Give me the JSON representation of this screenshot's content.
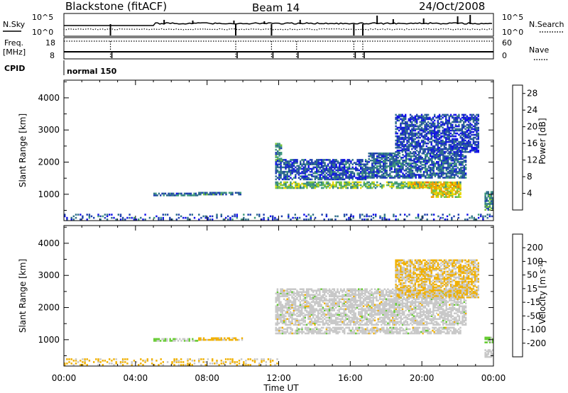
{
  "header": {
    "radar": "Blackstone (fitACF)",
    "beam": "Beam 14",
    "date": "24/Oct/2008"
  },
  "panels": {
    "sky_label": "N.Sky",
    "search_label": "N.Search",
    "sky_ticks": [
      "10^5",
      "10^0"
    ],
    "freq_label": "Freq.",
    "freq_unit": "[MHz]",
    "freq_ticks": [
      "18",
      "8"
    ],
    "nave_ticks": [
      "60",
      "0"
    ],
    "nave_label": "Nave",
    "cpid_label": "CPID",
    "cpid_value": "normal 150"
  },
  "colors": {
    "power_scale": [
      "#1010e8",
      "#1e3fae",
      "#2f6f8a",
      "#3f9a7a",
      "#7ac43a",
      "#e8d800",
      "#f0a000",
      "#f07000",
      "#e01010"
    ],
    "velocity_scale": [
      "#1010e8",
      "#2a56b0",
      "#3f8a7a",
      "#66cc33",
      "#c8c8c8",
      "#f0b000",
      "#f08000",
      "#ee5500",
      "#e01010"
    ]
  },
  "chart_data": [
    {
      "type": "heatmap",
      "title": "Power",
      "ylabel": "Slant Range [km]",
      "xlabel": "Time UT",
      "xticks": [
        "00:00",
        "04:00",
        "08:00",
        "12:00",
        "16:00",
        "20:00",
        "00:00"
      ],
      "yticks": [
        1000,
        2000,
        3000,
        4000
      ],
      "ylim": [
        180,
        4550
      ],
      "xlim_hours": [
        0,
        24
      ],
      "colorbar": {
        "label": "Power [dB]",
        "ticks": [
          4,
          8,
          12,
          16,
          20,
          24,
          28
        ],
        "range": [
          0,
          30
        ]
      },
      "regions": [
        {
          "t": [
            0.0,
            24.0
          ],
          "r": [
            200,
            400
          ],
          "value": 6,
          "coverage": "sparse"
        },
        {
          "t": [
            5.0,
            7.5
          ],
          "r": [
            950,
            1060
          ],
          "value": 8
        },
        {
          "t": [
            7.5,
            10.0
          ],
          "r": [
            980,
            1080
          ],
          "value": 9
        },
        {
          "t": [
            11.8,
            22.2
          ],
          "r": [
            1180,
            1400
          ],
          "value": 14
        },
        {
          "t": [
            11.8,
            17.0
          ],
          "r": [
            1450,
            2100
          ],
          "value": 6
        },
        {
          "t": [
            17.0,
            22.5
          ],
          "r": [
            1500,
            2300
          ],
          "value": 7
        },
        {
          "t": [
            19.2,
            22.2
          ],
          "r": [
            1200,
            1400
          ],
          "value": 20
        },
        {
          "t": [
            20.5,
            22.2
          ],
          "r": [
            900,
            1200
          ],
          "value": 18
        },
        {
          "t": [
            11.8,
            12.2
          ],
          "r": [
            2000,
            2600
          ],
          "value": 10
        },
        {
          "t": [
            18.5,
            23.2
          ],
          "r": [
            2300,
            3500
          ],
          "value": 5
        },
        {
          "t": [
            23.5,
            24.0
          ],
          "r": [
            500,
            1100
          ],
          "value": 10
        }
      ]
    },
    {
      "type": "heatmap",
      "title": "Velocity",
      "ylabel": "Slant Range [km]",
      "xlabel": "Time UT",
      "xticks": [
        "00:00",
        "04:00",
        "08:00",
        "12:00",
        "16:00",
        "20:00",
        "00:00"
      ],
      "yticks": [
        1000,
        2000,
        3000,
        4000
      ],
      "ylim": [
        180,
        4550
      ],
      "xlim_hours": [
        0,
        24
      ],
      "colorbar": {
        "label": "Velocity [m s^-1]",
        "ticks": [
          200,
          100,
          50,
          15,
          -15,
          -50,
          -100,
          -200
        ],
        "range": [
          -250,
          250
        ]
      },
      "regions": [
        {
          "t": [
            0.0,
            12.0
          ],
          "r": [
            200,
            420
          ],
          "value": -40,
          "coverage": "sparse"
        },
        {
          "t": [
            5.0,
            7.5
          ],
          "r": [
            950,
            1060
          ],
          "value": 30
        },
        {
          "t": [
            7.5,
            10.0
          ],
          "r": [
            980,
            1080
          ],
          "value": -40
        },
        {
          "t": [
            11.8,
            22.2
          ],
          "r": [
            1180,
            1400
          ],
          "value": 0
        },
        {
          "t": [
            11.8,
            22.5
          ],
          "r": [
            1450,
            2600
          ],
          "value": 0
        },
        {
          "t": [
            18.5,
            23.2
          ],
          "r": [
            2300,
            3500
          ],
          "value": -30
        },
        {
          "t": [
            23.5,
            24.0
          ],
          "r": [
            900,
            1100
          ],
          "value": 40
        },
        {
          "t": [
            23.5,
            24.0
          ],
          "r": [
            450,
            700
          ],
          "value": 0
        }
      ]
    }
  ]
}
